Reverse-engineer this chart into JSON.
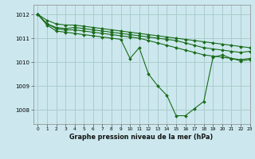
{
  "background_color": "#cce8ee",
  "grid_color": "#aacccc",
  "line_color": "#1a6b1a",
  "title": "Graphe pression niveau de la mer (hPa)",
  "xlim": [
    -0.5,
    23
  ],
  "ylim": [
    1007.4,
    1012.4
  ],
  "xticks": [
    0,
    1,
    2,
    3,
    4,
    5,
    6,
    7,
    8,
    9,
    10,
    11,
    12,
    13,
    14,
    15,
    16,
    17,
    18,
    19,
    20,
    21,
    22,
    23
  ],
  "yticks": [
    1008,
    1009,
    1010,
    1011,
    1012
  ],
  "series": [
    {
      "x": [
        0,
        1,
        2,
        3,
        4,
        5,
        6,
        7,
        8,
        9,
        10,
        11,
        12,
        13,
        14,
        15,
        16,
        17,
        18,
        19,
        20,
        21,
        22,
        23
      ],
      "y": [
        1012.0,
        1011.75,
        1011.6,
        1011.55,
        1011.55,
        1011.5,
        1011.45,
        1011.4,
        1011.35,
        1011.3,
        1011.25,
        1011.2,
        1011.15,
        1011.1,
        1011.05,
        1011.0,
        1010.95,
        1010.9,
        1010.85,
        1010.8,
        1010.75,
        1010.7,
        1010.65,
        1010.6
      ]
    },
    {
      "x": [
        0,
        1,
        2,
        3,
        4,
        5,
        6,
        7,
        8,
        9,
        10,
        11,
        12,
        13,
        14,
        15,
        16,
        17,
        18,
        19,
        20,
        21,
        22,
        23
      ],
      "y": [
        1012.0,
        1011.6,
        1011.45,
        1011.4,
        1011.45,
        1011.4,
        1011.35,
        1011.3,
        1011.25,
        1011.2,
        1011.15,
        1011.1,
        1011.05,
        1011.0,
        1010.95,
        1010.9,
        1010.8,
        1010.7,
        1010.6,
        1010.55,
        1010.5,
        1010.45,
        1010.4,
        1010.45
      ]
    },
    {
      "x": [
        0,
        1,
        2,
        3,
        4,
        5,
        6,
        7,
        8,
        9,
        10,
        11,
        12,
        13,
        14,
        15,
        16,
        17,
        18,
        19,
        20,
        21,
        22,
        23
      ],
      "y": [
        1012.0,
        1011.6,
        1011.4,
        1011.35,
        1011.35,
        1011.3,
        1011.25,
        1011.2,
        1011.15,
        1011.1,
        1011.05,
        1011.0,
        1010.9,
        1010.8,
        1010.7,
        1010.6,
        1010.5,
        1010.4,
        1010.3,
        1010.25,
        1010.2,
        1010.15,
        1010.1,
        1010.15
      ]
    },
    {
      "x": [
        0,
        1,
        2,
        3,
        4,
        5,
        6,
        7,
        8,
        9,
        10,
        11,
        12,
        13,
        14,
        15,
        16,
        17,
        18,
        19,
        20,
        21,
        22,
        23
      ],
      "y": [
        1012.0,
        1011.55,
        1011.3,
        1011.25,
        1011.2,
        1011.15,
        1011.1,
        1011.05,
        1011.0,
        1010.95,
        1010.15,
        1010.6,
        1009.5,
        1009.0,
        1008.6,
        1007.75,
        1007.75,
        1008.05,
        1008.35,
        1010.2,
        1010.3,
        1010.15,
        1010.05,
        1010.1
      ]
    }
  ]
}
